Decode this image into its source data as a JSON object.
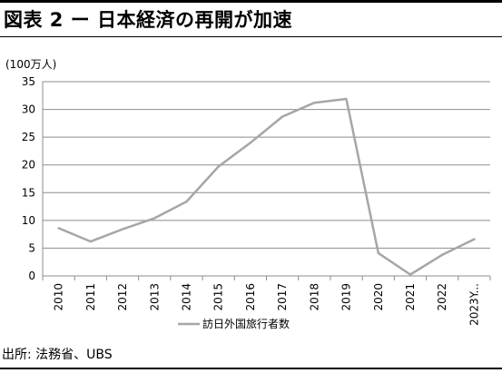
{
  "title": "図表 2 ー 日本経済の再開が加速",
  "source": "出所: 法務省、UBS",
  "chart_data": {
    "type": "line",
    "unit_label": "(100万人)",
    "categories": [
      "2010",
      "2011",
      "2012",
      "2013",
      "2014",
      "2015",
      "2016",
      "2017",
      "2018",
      "2019",
      "2020",
      "2021",
      "2022",
      "2023Y..."
    ],
    "series": [
      {
        "name": "訪日外国旅行者数",
        "color": "#a6a6a6",
        "values": [
          8.6,
          6.2,
          8.4,
          10.4,
          13.4,
          19.7,
          24.0,
          28.7,
          31.2,
          31.9,
          4.1,
          0.25,
          3.8,
          6.6
        ]
      }
    ],
    "ylim": [
      0,
      35
    ],
    "yticks": [
      0,
      5,
      10,
      15,
      20,
      25,
      30,
      35
    ],
    "grid": true,
    "legend": "bottom"
  }
}
